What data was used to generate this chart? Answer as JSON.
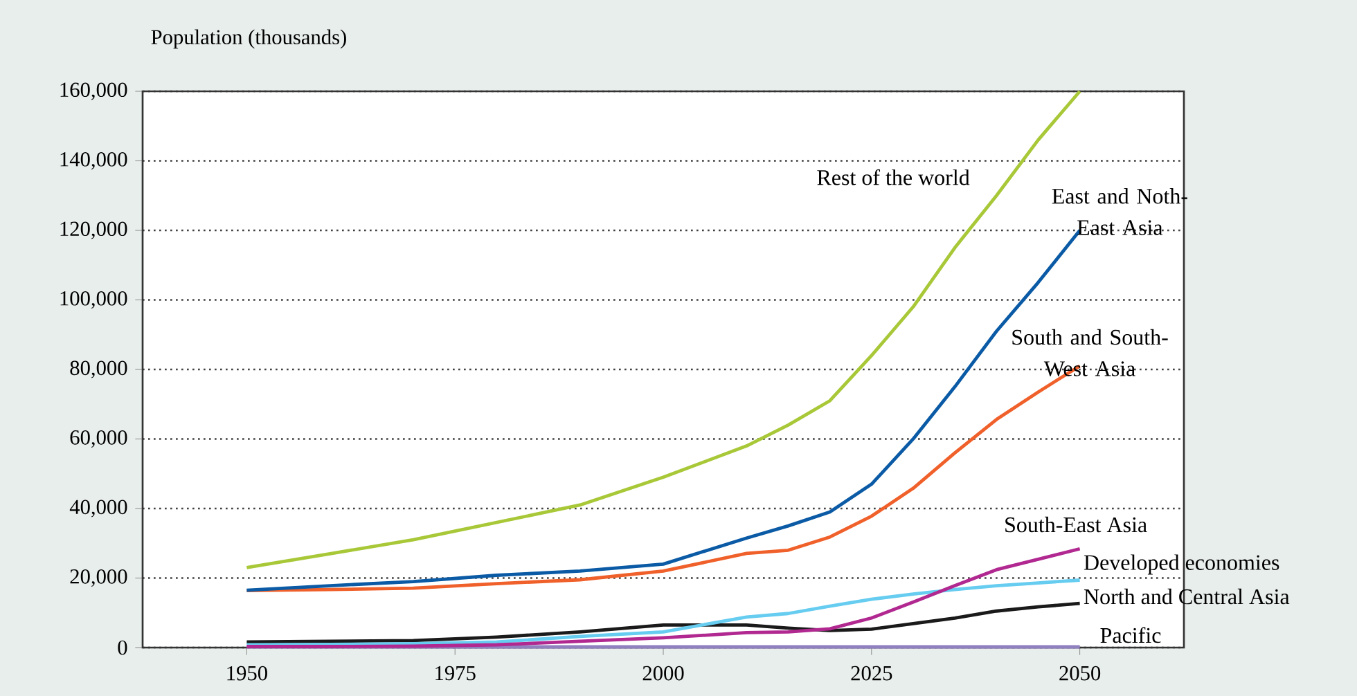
{
  "chart_data": {
    "type": "line",
    "ylabel": "Population (thousands)",
    "xlim": [
      1937.5,
      2062.5
    ],
    "xticks": [
      1950,
      1975,
      2000,
      2025,
      2050
    ],
    "ylim": [
      0,
      160000
    ],
    "yticks": [
      {
        "value": 0,
        "label": "0"
      },
      {
        "value": 20000,
        "label": "20,000"
      },
      {
        "value": 40000,
        "label": "40,000"
      },
      {
        "value": 60000,
        "label": "60,000"
      },
      {
        "value": 80000,
        "label": "80,000"
      },
      {
        "value": 100000,
        "label": "100,000"
      },
      {
        "value": 120000,
        "label": "120,000"
      },
      {
        "value": 140000,
        "label": "140,000"
      },
      {
        "value": 160000,
        "label": "160,000"
      }
    ],
    "grid": "y",
    "legend": false,
    "marker": "none",
    "line_style": "solid",
    "x": [
      1950,
      1960,
      1970,
      1980,
      1990,
      2000,
      2010,
      2015,
      2020,
      2025,
      2030,
      2035,
      2040,
      2045,
      2050
    ],
    "series": [
      {
        "name": "Rest of the world",
        "color": "#a8c838",
        "values": [
          23000,
          27000,
          31000,
          36000,
          41000,
          49000,
          58000,
          64000,
          71000,
          84000,
          98000,
          115000,
          130000,
          146000,
          160000
        ]
      },
      {
        "name": "East and Noth-East Asia",
        "color": "#0a5aa5",
        "values": [
          16500,
          17800,
          19000,
          20800,
          22000,
          24000,
          31500,
          35000,
          39000,
          47000,
          60000,
          75000,
          91000,
          105000,
          120000
        ]
      },
      {
        "name": "South and South-West Asia",
        "color": "#f0602a",
        "values": [
          16400,
          16700,
          17100,
          18400,
          19500,
          22000,
          27100,
          28000,
          31800,
          37800,
          45800,
          56000,
          65600,
          73500,
          81000
        ]
      },
      {
        "name": "South-East Asia",
        "color": "#b02890",
        "values": [
          300,
          300,
          400,
          800,
          1800,
          2800,
          4300,
          4500,
          5400,
          8500,
          13100,
          17800,
          22400,
          25400,
          28400
        ]
      },
      {
        "name": "Developed economies",
        "color": "#66ccf0",
        "values": [
          800,
          900,
          1100,
          1600,
          3200,
          4500,
          8800,
          9800,
          11900,
          13900,
          15400,
          16700,
          17800,
          18600,
          19400
        ]
      },
      {
        "name": "North and Central Asia",
        "color": "#1a1a1a",
        "values": [
          1600,
          1800,
          2000,
          3000,
          4500,
          6500,
          6500,
          5600,
          4900,
          5300,
          6900,
          8500,
          10500,
          11700,
          12700
        ]
      },
      {
        "name": "Pacific",
        "color": "#9080c0",
        "values": [
          200,
          200,
          200,
          200,
          200,
          200,
          200,
          200,
          200,
          200,
          200,
          200,
          200,
          200,
          200
        ]
      }
    ]
  }
}
